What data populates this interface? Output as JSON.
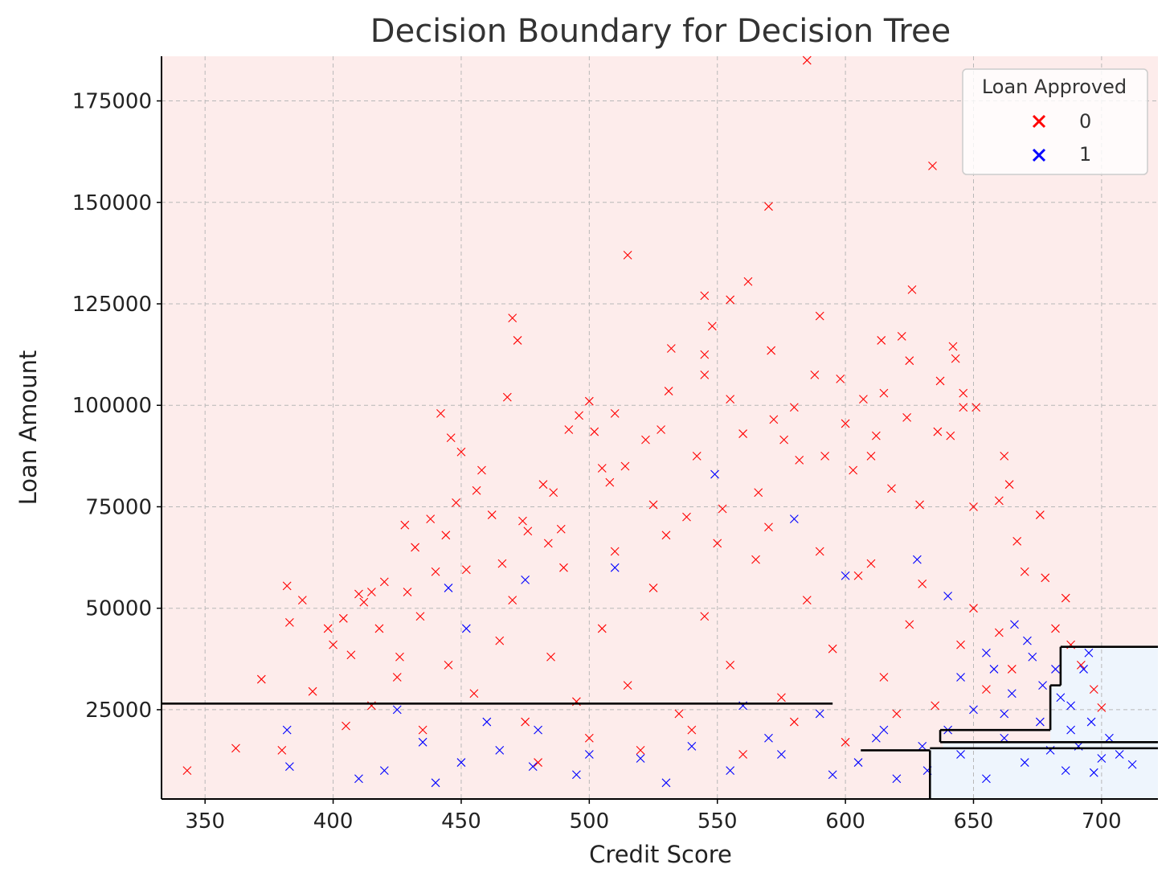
{
  "chart_data": {
    "type": "scatter",
    "title": "Decision Boundary for Decision Tree",
    "xlabel": "Credit Score",
    "ylabel": "Loan Amount",
    "xlim": [
      333,
      722
    ],
    "ylim": [
      3000,
      186000
    ],
    "xticks": [
      350,
      400,
      450,
      500,
      550,
      600,
      650,
      700
    ],
    "yticks": [
      25000,
      50000,
      75000,
      100000,
      125000,
      150000,
      175000
    ],
    "grid": true,
    "legend": {
      "title": "Loan Approved",
      "placement": "top-right",
      "entries": [
        {
          "label": "0",
          "color": "#ff0000"
        },
        {
          "label": "1",
          "color": "#0000ff"
        }
      ]
    },
    "regions": [
      {
        "class": "0",
        "color": "#fdeceb",
        "description": "most of plane"
      },
      {
        "class": "1",
        "color": "#eef5fd",
        "polygon": [
          [
            684,
            40500
          ],
          [
            722,
            40500
          ],
          [
            722,
            3000
          ],
          [
            633,
            3000
          ],
          [
            633,
            15500
          ],
          [
            638,
            15500
          ],
          [
            638,
            17000
          ],
          [
            680,
            17000
          ],
          [
            680,
            31000
          ],
          [
            684,
            31000
          ]
        ]
      }
    ],
    "boundary_segments": [
      [
        [
          333,
          26500
        ],
        [
          595,
          26500
        ]
      ],
      [
        [
          606,
          15000
        ],
        [
          633,
          15000
        ]
      ],
      [
        [
          633,
          15000
        ],
        [
          633,
          3000
        ]
      ],
      [
        [
          637,
          17000
        ],
        [
          637,
          20000
        ]
      ],
      [
        [
          637,
          20000
        ],
        [
          680,
          20000
        ]
      ],
      [
        [
          680,
          20000
        ],
        [
          680,
          31000
        ]
      ],
      [
        [
          680,
          31000
        ],
        [
          684,
          31000
        ]
      ],
      [
        [
          684,
          31000
        ],
        [
          684,
          40500
        ]
      ],
      [
        [
          684,
          40500
        ],
        [
          722,
          40500
        ]
      ],
      [
        [
          637,
          17000
        ],
        [
          722,
          17000
        ]
      ],
      [
        [
          633,
          15500
        ],
        [
          722,
          15500
        ]
      ]
    ],
    "series": [
      {
        "name": "0",
        "color": "#ff0000",
        "marker": "x",
        "points": [
          [
            343,
            10000
          ],
          [
            362,
            15500
          ],
          [
            372,
            32500
          ],
          [
            380,
            15000
          ],
          [
            382,
            55500
          ],
          [
            383,
            46500
          ],
          [
            388,
            52000
          ],
          [
            392,
            29500
          ],
          [
            398,
            45000
          ],
          [
            400,
            41000
          ],
          [
            404,
            47500
          ],
          [
            407,
            38500
          ],
          [
            410,
            53500
          ],
          [
            412,
            51500
          ],
          [
            415,
            54000
          ],
          [
            418,
            45000
          ],
          [
            420,
            56500
          ],
          [
            426,
            38000
          ],
          [
            428,
            70500
          ],
          [
            429,
            54000
          ],
          [
            432,
            65000
          ],
          [
            434,
            48000
          ],
          [
            438,
            72000
          ],
          [
            440,
            59000
          ],
          [
            442,
            98000
          ],
          [
            444,
            68000
          ],
          [
            446,
            92000
          ],
          [
            448,
            76000
          ],
          [
            450,
            88500
          ],
          [
            452,
            59500
          ],
          [
            456,
            79000
          ],
          [
            458,
            84000
          ],
          [
            462,
            73000
          ],
          [
            466,
            61000
          ],
          [
            468,
            102000
          ],
          [
            470,
            121500
          ],
          [
            472,
            116000
          ],
          [
            474,
            71500
          ],
          [
            476,
            69000
          ],
          [
            482,
            80500
          ],
          [
            484,
            66000
          ],
          [
            486,
            78500
          ],
          [
            489,
            69500
          ],
          [
            492,
            94000
          ],
          [
            496,
            97500
          ],
          [
            500,
            101000
          ],
          [
            502,
            93500
          ],
          [
            505,
            84500
          ],
          [
            508,
            81000
          ],
          [
            510,
            98000
          ],
          [
            514,
            85000
          ],
          [
            515,
            137000
          ],
          [
            522,
            91500
          ],
          [
            525,
            75500
          ],
          [
            528,
            94000
          ],
          [
            531,
            103500
          ],
          [
            532,
            114000
          ],
          [
            538,
            72500
          ],
          [
            542,
            87500
          ],
          [
            545,
            112500
          ],
          [
            545,
            107500
          ],
          [
            545,
            127000
          ],
          [
            548,
            119500
          ],
          [
            552,
            74500
          ],
          [
            555,
            101500
          ],
          [
            555,
            126000
          ],
          [
            560,
            93000
          ],
          [
            562,
            130500
          ],
          [
            566,
            78500
          ],
          [
            570,
            149000
          ],
          [
            571,
            113500
          ],
          [
            572,
            96500
          ],
          [
            576,
            91500
          ],
          [
            580,
            99500
          ],
          [
            582,
            86500
          ],
          [
            585,
            185000
          ],
          [
            588,
            107500
          ],
          [
            590,
            122000
          ],
          [
            592,
            87500
          ],
          [
            598,
            106500
          ],
          [
            600,
            95500
          ],
          [
            603,
            84000
          ],
          [
            607,
            101500
          ],
          [
            610,
            87500
          ],
          [
            612,
            92500
          ],
          [
            614,
            116000
          ],
          [
            615,
            103000
          ],
          [
            618,
            79500
          ],
          [
            622,
            117000
          ],
          [
            624,
            97000
          ],
          [
            625,
            111000
          ],
          [
            626,
            128500
          ],
          [
            629,
            75500
          ],
          [
            634,
            159000
          ],
          [
            636,
            93500
          ],
          [
            637,
            106000
          ],
          [
            641,
            92500
          ],
          [
            642,
            114500
          ],
          [
            643,
            111500
          ],
          [
            646,
            103000
          ],
          [
            646,
            99500
          ],
          [
            650,
            75000
          ],
          [
            651,
            99500
          ],
          [
            660,
            76500
          ],
          [
            662,
            87500
          ],
          [
            664,
            80500
          ],
          [
            667,
            66500
          ],
          [
            670,
            59000
          ],
          [
            676,
            73000
          ],
          [
            678,
            57500
          ],
          [
            682,
            45000
          ],
          [
            686,
            52500
          ],
          [
            688,
            41000
          ],
          [
            692,
            36000
          ],
          [
            697,
            30000
          ],
          [
            700,
            25500
          ],
          [
            405,
            21000
          ],
          [
            415,
            26000
          ],
          [
            425,
            33000
          ],
          [
            435,
            20000
          ],
          [
            445,
            36000
          ],
          [
            455,
            29000
          ],
          [
            465,
            42000
          ],
          [
            475,
            22000
          ],
          [
            485,
            38000
          ],
          [
            495,
            27000
          ],
          [
            505,
            45000
          ],
          [
            515,
            31000
          ],
          [
            525,
            55000
          ],
          [
            535,
            24000
          ],
          [
            545,
            48000
          ],
          [
            555,
            36000
          ],
          [
            565,
            62000
          ],
          [
            575,
            28000
          ],
          [
            585,
            52000
          ],
          [
            595,
            40000
          ],
          [
            605,
            58000
          ],
          [
            615,
            33000
          ],
          [
            625,
            46000
          ],
          [
            635,
            26000
          ],
          [
            645,
            41000
          ],
          [
            655,
            30000
          ],
          [
            665,
            35000
          ],
          [
            480,
            12000
          ],
          [
            500,
            18000
          ],
          [
            520,
            15000
          ],
          [
            540,
            20000
          ],
          [
            560,
            14000
          ],
          [
            580,
            22000
          ],
          [
            600,
            17000
          ],
          [
            620,
            24000
          ],
          [
            470,
            52000
          ],
          [
            490,
            60000
          ],
          [
            510,
            64000
          ],
          [
            530,
            68000
          ],
          [
            550,
            66000
          ],
          [
            570,
            70000
          ],
          [
            590,
            64000
          ],
          [
            610,
            61000
          ],
          [
            630,
            56000
          ],
          [
            650,
            50000
          ],
          [
            660,
            44000
          ]
        ]
      },
      {
        "name": "1",
        "color": "#0000ff",
        "marker": "x",
        "points": [
          [
            382,
            20000
          ],
          [
            383,
            11000
          ],
          [
            410,
            8000
          ],
          [
            425,
            25000
          ],
          [
            440,
            7000
          ],
          [
            445,
            55000
          ],
          [
            452,
            45000
          ],
          [
            460,
            22000
          ],
          [
            475,
            57000
          ],
          [
            478,
            11000
          ],
          [
            495,
            9000
          ],
          [
            510,
            60000
          ],
          [
            520,
            13000
          ],
          [
            530,
            7000
          ],
          [
            549,
            83000
          ],
          [
            555,
            10000
          ],
          [
            575,
            14000
          ],
          [
            580,
            72000
          ],
          [
            595,
            9000
          ],
          [
            600,
            58000
          ],
          [
            605,
            12000
          ],
          [
            612,
            18000
          ],
          [
            620,
            8000
          ],
          [
            628,
            62000
          ],
          [
            632,
            10000
          ],
          [
            640,
            53000
          ],
          [
            645,
            14000
          ],
          [
            650,
            25000
          ],
          [
            655,
            8000
          ],
          [
            658,
            35000
          ],
          [
            662,
            18000
          ],
          [
            666,
            46000
          ],
          [
            670,
            12000
          ],
          [
            673,
            38000
          ],
          [
            676,
            22000
          ],
          [
            680,
            15000
          ],
          [
            684,
            28000
          ],
          [
            686,
            10000
          ],
          [
            688,
            20000
          ],
          [
            691,
            16000
          ],
          [
            693,
            35000
          ],
          [
            695,
            39000
          ],
          [
            697,
            9500
          ],
          [
            700,
            13000
          ],
          [
            703,
            18000
          ],
          [
            707,
            14000
          ],
          [
            712,
            11500
          ],
          [
            688,
            26000
          ],
          [
            682,
            35000
          ],
          [
            696,
            22000
          ],
          [
            665,
            29000
          ],
          [
            671,
            42000
          ],
          [
            677,
            31000
          ],
          [
            640,
            20000
          ],
          [
            630,
            16000
          ],
          [
            615,
            20000
          ],
          [
            590,
            24000
          ],
          [
            570,
            18000
          ],
          [
            560,
            26000
          ],
          [
            540,
            16000
          ],
          [
            500,
            14000
          ],
          [
            480,
            20000
          ],
          [
            465,
            15000
          ],
          [
            450,
            12000
          ],
          [
            435,
            17000
          ],
          [
            420,
            10000
          ],
          [
            655,
            39000
          ],
          [
            645,
            33000
          ],
          [
            662,
            24000
          ]
        ]
      }
    ]
  }
}
